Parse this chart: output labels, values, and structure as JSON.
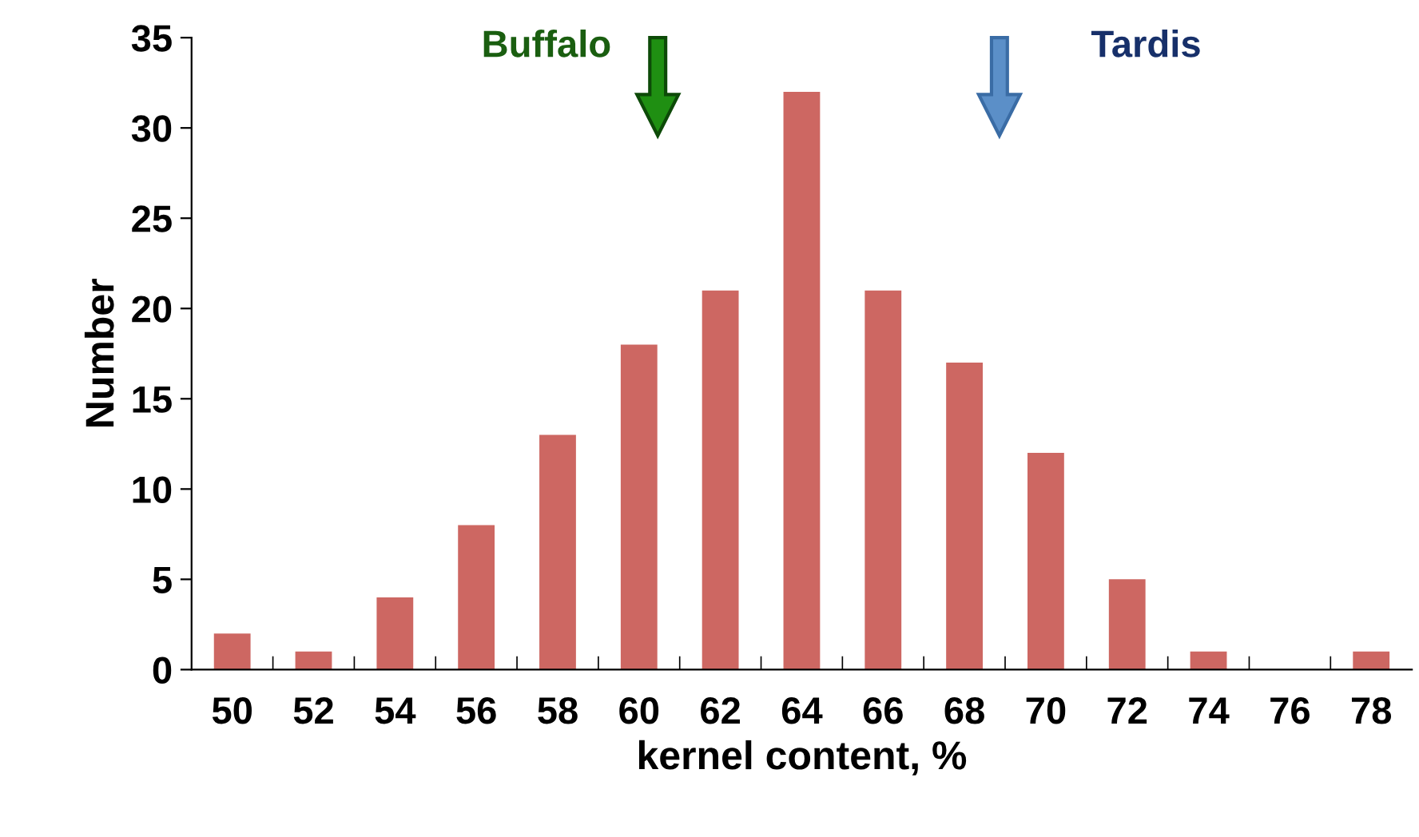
{
  "chart_data": {
    "type": "bar",
    "xlabel": "kernel content, %",
    "ylabel": "Number",
    "categories": [
      "50",
      "52",
      "54",
      "56",
      "58",
      "60",
      "62",
      "64",
      "66",
      "68",
      "70",
      "72",
      "74",
      "76",
      "78"
    ],
    "values": [
      2,
      1,
      4,
      8,
      13,
      18,
      21,
      32,
      21,
      17,
      12,
      5,
      1,
      0,
      1
    ],
    "color": "#cd6762",
    "ylim": [
      0,
      35
    ],
    "yticks": [
      0,
      5,
      10,
      15,
      20,
      25,
      30,
      35
    ],
    "grid": false,
    "annotations": [
      "Buffalo",
      "Tardis"
    ]
  }
}
